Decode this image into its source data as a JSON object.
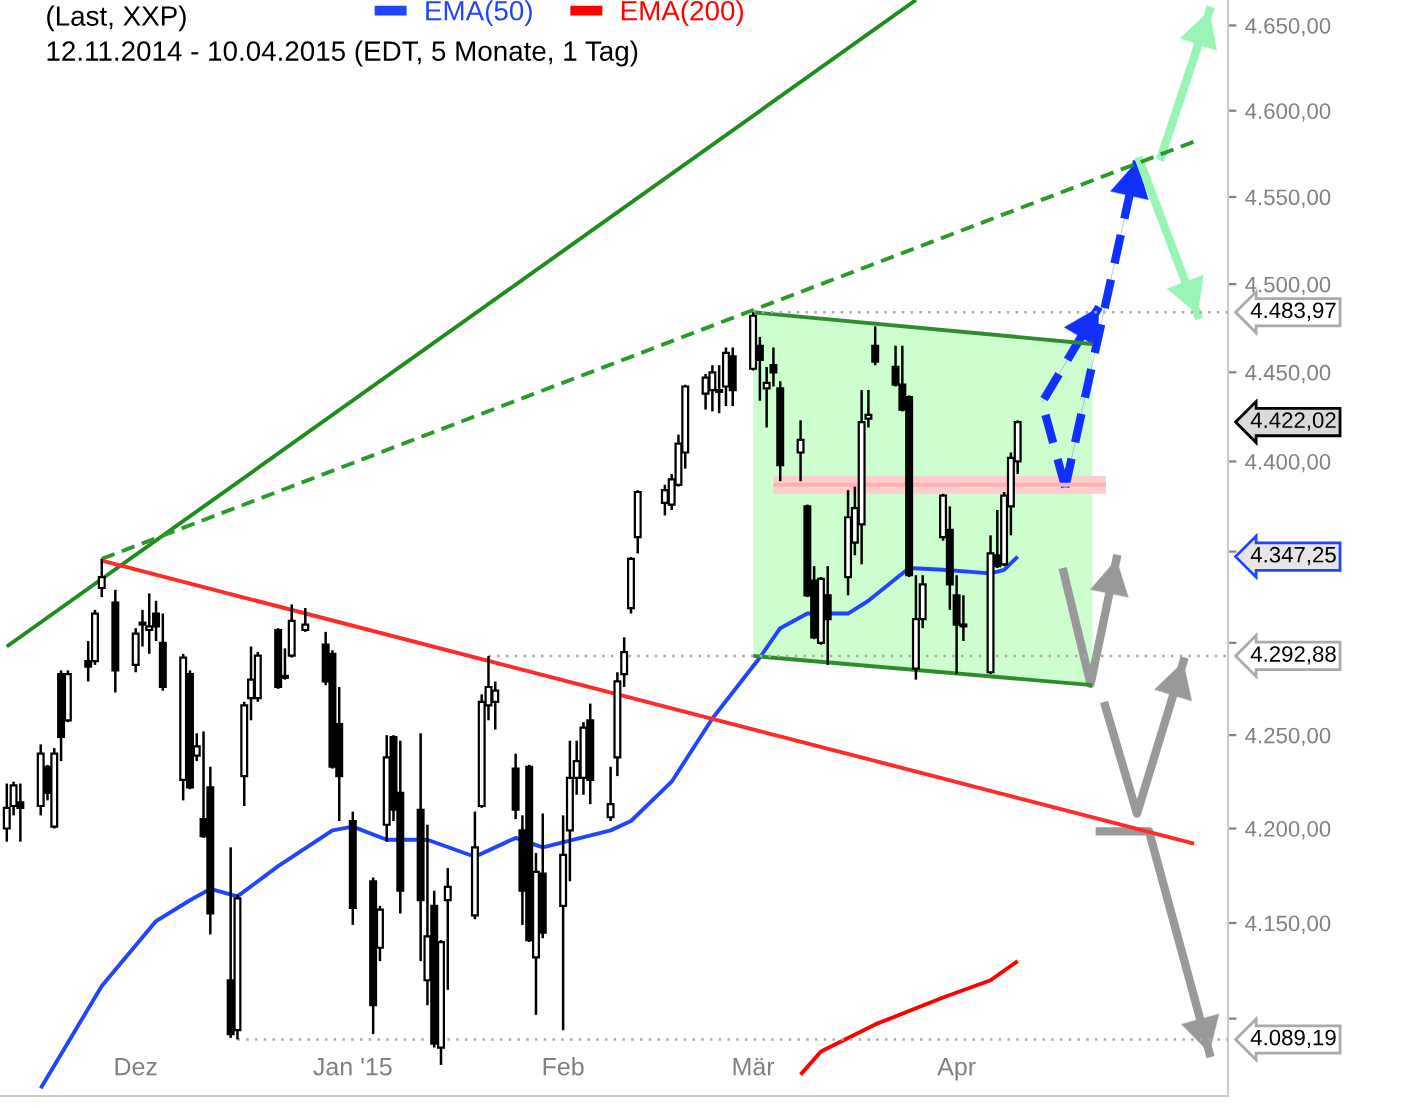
{
  "chart_data": {
    "type": "candlestick",
    "title": "(Last, XXP)",
    "subtitle": "12.11.2014 - 10.04.2015 (EDT, 5 Monate, 1 Tag)",
    "x": [
      "2014-11-12",
      "2014-11-13",
      "2014-11-14",
      "2014-11-17",
      "2014-11-18",
      "2014-11-19",
      "2014-11-20",
      "2014-11-21",
      "2014-11-24",
      "2014-11-25",
      "2014-11-26",
      "2014-11-28",
      "2014-12-01",
      "2014-12-02",
      "2014-12-03",
      "2014-12-04",
      "2014-12-05",
      "2014-12-08",
      "2014-12-09",
      "2014-12-10",
      "2014-12-11",
      "2014-12-12",
      "2014-12-15",
      "2014-12-16",
      "2014-12-17",
      "2014-12-18",
      "2014-12-19",
      "2014-12-22",
      "2014-12-23",
      "2014-12-24",
      "2014-12-26",
      "2014-12-29",
      "2014-12-30",
      "2014-12-31",
      "2015-01-02",
      "2015-01-05",
      "2015-01-06",
      "2015-01-07",
      "2015-01-08",
      "2015-01-09",
      "2015-01-12",
      "2015-01-13",
      "2015-01-14",
      "2015-01-15",
      "2015-01-16",
      "2015-01-20",
      "2015-01-21",
      "2015-01-22",
      "2015-01-23",
      "2015-01-26",
      "2015-01-27",
      "2015-01-28",
      "2015-01-29",
      "2015-01-30",
      "2015-02-02",
      "2015-02-03",
      "2015-02-04",
      "2015-02-05",
      "2015-02-06",
      "2015-02-09",
      "2015-02-10",
      "2015-02-11",
      "2015-02-12",
      "2015-02-13",
      "2015-02-17",
      "2015-02-18",
      "2015-02-19",
      "2015-02-20",
      "2015-02-23",
      "2015-02-24",
      "2015-02-25",
      "2015-02-26",
      "2015-02-27",
      "2015-03-02",
      "2015-03-03",
      "2015-03-04",
      "2015-03-05",
      "2015-03-06",
      "2015-03-09",
      "2015-03-10",
      "2015-03-11",
      "2015-03-12",
      "2015-03-13",
      "2015-03-16",
      "2015-03-17",
      "2015-03-18",
      "2015-03-19",
      "2015-03-20",
      "2015-03-23",
      "2015-03-24",
      "2015-03-25",
      "2015-03-26",
      "2015-03-27",
      "2015-03-30",
      "2015-03-31",
      "2015-04-01",
      "2015-04-02",
      "2015-04-06",
      "2015-04-07",
      "2015-04-08",
      "2015-04-09",
      "2015-04-10"
    ],
    "ohlc": [
      [
        4200,
        4224,
        4193,
        4211
      ],
      [
        4212,
        4225,
        4207,
        4223
      ],
      [
        4214,
        4224,
        4193,
        4211
      ],
      [
        4212,
        4245,
        4207,
        4240
      ],
      [
        4233,
        4234,
        4215,
        4219
      ],
      [
        4201,
        4243,
        4200,
        4240
      ],
      [
        4283,
        4285,
        4236,
        4249
      ],
      [
        4258,
        4285,
        4257,
        4283
      ],
      [
        4290,
        4301,
        4279,
        4287
      ],
      [
        4290,
        4318,
        4288,
        4316
      ],
      [
        4330,
        4346,
        4325,
        4336
      ],
      [
        4322,
        4329,
        4273,
        4285
      ],
      [
        4288,
        4308,
        4284,
        4305
      ],
      [
        4311,
        4318,
        4298,
        4310
      ],
      [
        4307,
        4327,
        4294,
        4309
      ],
      [
        4316,
        4323,
        4301,
        4309
      ],
      [
        4300,
        4316,
        4274,
        4276
      ],
      [
        4226,
        4294,
        4215,
        4292
      ],
      [
        4283,
        4285,
        4221,
        4222
      ],
      [
        4239,
        4251,
        4236,
        4244
      ],
      [
        4205,
        4252,
        4195,
        4196
      ],
      [
        4222,
        4233,
        4144,
        4155
      ],
      [
        4120,
        4190,
        4090,
        4092
      ],
      [
        4094,
        4165,
        4089.19,
        4163
      ],
      [
        4228,
        4268,
        4212,
        4266
      ],
      [
        4270,
        4298,
        4258,
        4280
      ],
      [
        4270,
        4295,
        4268,
        4293
      ],
      [
        4307,
        4308,
        4275,
        4276
      ],
      [
        4282,
        4297,
        4280,
        4281
      ],
      [
        4293,
        4321,
        4292,
        4312
      ],
      [
        4307,
        4319,
        4306,
        4310
      ],
      [
        4299,
        4306,
        4277,
        4279
      ],
      [
        4294,
        4296,
        4232,
        4233
      ],
      [
        4256,
        4276,
        4204,
        4228
      ],
      [
        4204,
        4209,
        4149,
        4158
      ],
      [
        4172,
        4174,
        4092,
        4107
      ],
      [
        4137,
        4159,
        4130,
        4157
      ],
      [
        4202,
        4250,
        4193,
        4238
      ],
      [
        4249,
        4250,
        4204,
        4210
      ],
      [
        4219,
        4247,
        4155,
        4167
      ],
      [
        4210,
        4251,
        4130,
        4162
      ],
      [
        4120,
        4202,
        4107,
        4143
      ],
      [
        4159,
        4167,
        4085,
        4087
      ],
      [
        4085,
        4141,
        4076,
        4140
      ],
      [
        4162,
        4179,
        4115,
        4169
      ],
      [
        4154,
        4209,
        4152,
        4190
      ],
      [
        4212,
        4272,
        4211,
        4268
      ],
      [
        4266,
        4292.88,
        4258,
        4276
      ],
      [
        4268,
        4279,
        4253,
        4274
      ],
      [
        4232,
        4240,
        4205,
        4210
      ],
      [
        4199,
        4207,
        4149,
        4167
      ],
      [
        4233,
        4234,
        4140,
        4141
      ],
      [
        4132,
        4187,
        4102,
        4177
      ],
      [
        4176,
        4208,
        4142,
        4145
      ],
      [
        4159,
        4207,
        4094,
        4186
      ],
      [
        4199,
        4247,
        4172,
        4227
      ],
      [
        4227,
        4247,
        4218,
        4236
      ],
      [
        4227,
        4257,
        4218,
        4254
      ],
      [
        4258,
        4267,
        4213,
        4226
      ],
      [
        4206,
        4233,
        4204,
        4213
      ],
      [
        4238,
        4284,
        4228,
        4279
      ],
      [
        4283,
        4303,
        4276,
        4295
      ],
      [
        4319,
        4347,
        4316,
        4346
      ],
      [
        4358,
        4384,
        4349,
        4383
      ],
      [
        4377,
        4387,
        4370,
        4384
      ],
      [
        4376,
        4393,
        4373,
        4390
      ],
      [
        4387,
        4415,
        4386,
        4410
      ],
      [
        4405,
        4443,
        4396,
        4442
      ],
      [
        4438,
        4449,
        4429,
        4447
      ],
      [
        4440,
        4454,
        4428,
        4450
      ],
      [
        4439,
        4454,
        4427,
        4440
      ],
      [
        4442,
        4464,
        4431,
        4461
      ],
      [
        4459,
        4464,
        4431,
        4440
      ],
      [
        4452,
        4483.97,
        4451,
        4482
      ],
      [
        4465,
        4470,
        4434,
        4457
      ],
      [
        4441,
        4453,
        4419,
        4444
      ],
      [
        4454,
        4464,
        4442,
        4450
      ],
      [
        4441,
        4445,
        4389,
        4398
      ],
      [
        4405,
        4423,
        4389,
        4412
      ],
      [
        4375,
        4376,
        4325,
        4326
      ],
      [
        4334,
        4342,
        4302,
        4303
      ],
      [
        4300,
        4336,
        4299,
        4335
      ],
      [
        4326,
        4342,
        4288,
        4313
      ],
      [
        4336,
        4384,
        4326,
        4369
      ],
      [
        4355,
        4386,
        4348,
        4374
      ],
      [
        4365,
        4440,
        4343,
        4422
      ],
      [
        4424,
        4440,
        4419,
        4426
      ],
      [
        4465,
        4476,
        4454,
        4456
      ],
      [
        4453,
        4465,
        4442,
        4443
      ],
      [
        4443,
        4465,
        4428,
        4429
      ],
      [
        4436,
        4437,
        4336,
        4337
      ],
      [
        4286,
        4337,
        4280,
        4313
      ],
      [
        4313,
        4337,
        4308,
        4332
      ],
      [
        4358,
        4382,
        4356,
        4381
      ],
      [
        4362,
        4375,
        4318,
        4332
      ],
      [
        4326,
        4337,
        4283,
        4310
      ],
      [
        4309,
        4326,
        4301,
        4310
      ],
      [
        4284,
        4359,
        4283,
        4349
      ],
      [
        4348,
        4373,
        4341,
        4342
      ],
      [
        4343,
        4383,
        4342,
        4381
      ],
      [
        4375,
        4405,
        4359,
        4402
      ],
      [
        4400,
        4423,
        4393,
        4422.02
      ]
    ],
    "series": [
      {
        "name": "EMA(50)",
        "type": "line",
        "color": "#2244ff",
        "x": [
          "2014-11-17",
          "2014-11-26",
          "2014-12-04",
          "2014-12-09",
          "2014-12-12",
          "2014-12-16",
          "2014-12-22",
          "2014-12-30",
          "2015-01-02",
          "2015-01-07",
          "2015-01-13",
          "2015-01-20",
          "2015-01-26",
          "2015-01-30",
          "2015-02-09",
          "2015-02-12",
          "2015-02-18",
          "2015-02-24",
          "2015-03-03",
          "2015-03-06",
          "2015-03-10",
          "2015-03-16",
          "2015-03-19",
          "2015-03-25",
          "2015-03-30",
          "2015-04-06",
          "2015-04-08",
          "2015-04-10"
        ],
        "values": [
          4064,
          4117,
          4151,
          4162,
          4168,
          4164,
          4180,
          4199,
          4201,
          4194,
          4194,
          4185,
          4195,
          4190,
          4199,
          4204,
          4225,
          4259,
          4292,
          4308,
          4316,
          4316,
          4323,
          4341,
          4340,
          4338,
          4340,
          4347.25
        ]
      },
      {
        "name": "EMA(200)",
        "type": "line",
        "color": "#ff0000",
        "x": [
          "2015-03-09",
          "2015-03-12",
          "2015-03-20",
          "2015-03-30",
          "2015-04-06",
          "2015-04-10"
        ],
        "values": [
          4071,
          4083,
          4097,
          4111,
          4120,
          4130
        ]
      },
      {
        "type": "line",
        "color": "#1e8c1e",
        "x": [
          "2014-11-12",
          "2015-03-26"
        ],
        "values": [
          4298,
          4665
        ]
      },
      {
        "type": "line",
        "color": "#2a9a2a",
        "line_style": "dashed",
        "x": [
          "2014-11-26",
          "2015-05-06"
        ],
        "values": [
          4346,
          4582
        ]
      },
      {
        "type": "line",
        "color": "#ff2a2a",
        "x": [
          "2014-11-26",
          "2015-05-06"
        ],
        "values": [
          4345,
          4192
        ]
      },
      {
        "type": "line",
        "color": "#2e8b2e",
        "x": [
          "2015-03-02",
          "2015-04-21"
        ],
        "values": [
          4483.97,
          4466
        ],
        "lower": [
          4292.88,
          4277
        ],
        "upper": [
          4483.97,
          4466
        ]
      },
      {
        "type": "line",
        "color": "#2e8b2e",
        "x": [
          "2015-03-02",
          "2015-04-21"
        ],
        "values": [
          4292.88,
          4277
        ]
      },
      {
        "type": "line",
        "color": "#ffb0b0",
        "x": [
          "2015-03-05",
          "2015-04-23"
        ],
        "values": [
          4387,
          4387
        ],
        "lower": [
          4382,
          4382
        ],
        "upper": [
          4392,
          4392
        ]
      },
      {
        "type": "line",
        "color": "#aaaaaa",
        "line_style": "dotted",
        "x": [
          "2015-03-02",
          "2015-05-11"
        ],
        "values": [
          4483.97,
          4483.97
        ],
        "value_labels": [
          null,
          "4.483,97"
        ]
      },
      {
        "type": "line",
        "color": "#aaaaaa",
        "line_style": "dotted",
        "x": [
          "2015-01-22",
          "2015-05-11"
        ],
        "values": [
          4292.88,
          4292.88
        ],
        "value_labels": [
          null,
          "4.292,88"
        ]
      },
      {
        "type": "line",
        "color": "#aaaaaa",
        "line_style": "dotted",
        "x": [
          "2014-12-16",
          "2015-05-11"
        ],
        "values": [
          4089.19,
          4089.19
        ],
        "value_labels": [
          null,
          "4.089,19"
        ]
      }
    ],
    "annotations": [
      "4.422,02",
      "4.347,25"
    ],
    "xlim": [
      "2014-11-11",
      "2015-05-11"
    ],
    "xticks": [
      {
        "value": "2014-12-01",
        "label": "Dez"
      },
      {
        "value": "2015-01-02",
        "label": "Jan '15"
      },
      {
        "value": "2015-02-02",
        "label": "Feb"
      },
      {
        "value": "2015-03-02",
        "label": "Mär"
      },
      {
        "value": "2015-04-01",
        "label": "Apr"
      }
    ],
    "ylim": [
      4060,
      4665
    ],
    "yticks": [
      {
        "value": 4100,
        "label": null
      },
      {
        "value": 4150,
        "label": "4.150,00"
      },
      {
        "value": 4200,
        "label": "4.200,00"
      },
      {
        "value": 4250,
        "label": "4.250,00"
      },
      {
        "value": 4300,
        "label": null
      },
      {
        "value": 4350,
        "label": null
      },
      {
        "value": 4400,
        "label": "4.400,00"
      },
      {
        "value": 4450,
        "label": "4.450,00"
      },
      {
        "value": 4500,
        "label": "4.500,00"
      },
      {
        "value": 4550,
        "label": "4.550,00"
      },
      {
        "value": 4600,
        "label": "4.600,00"
      },
      {
        "value": 4650,
        "label": "4.650,00"
      }
    ],
    "log": true,
    "legend": "top left"
  }
}
